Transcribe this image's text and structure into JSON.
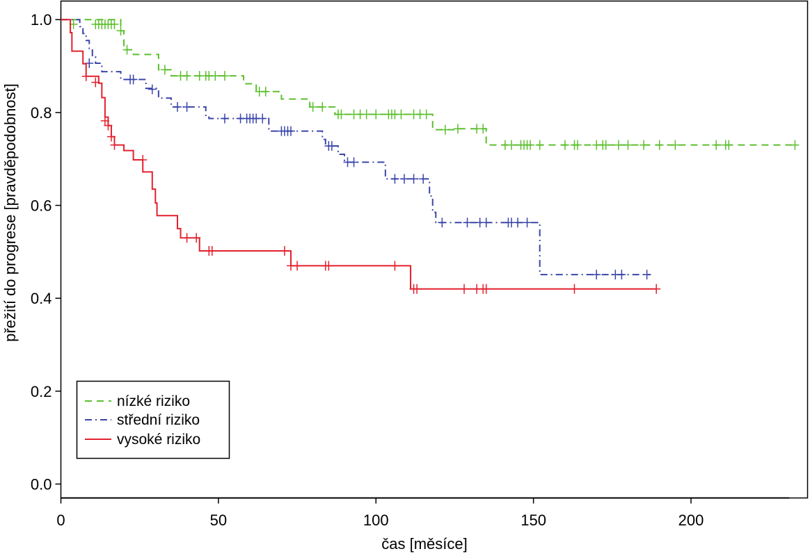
{
  "chart_data": {
    "type": "line",
    "subtype": "kaplan-meier step curves with censoring marks",
    "xlabel": "čas [měsíce]",
    "ylabel": "přežití do progrese [pravděpodobnost]",
    "xlim": [
      0,
      237
    ],
    "ylim": [
      -0.03,
      1.04
    ],
    "x_ticks": [
      0,
      50,
      100,
      150,
      200
    ],
    "x_tick_labels": [
      "0",
      "50",
      "100",
      "150",
      "200"
    ],
    "y_ticks": [
      0.0,
      0.2,
      0.4,
      0.6,
      0.8,
      1.0
    ],
    "y_tick_labels": [
      "0.0",
      "0.2",
      "0.4",
      "0.6",
      "0.8",
      "1.0"
    ],
    "grid": false,
    "legend_position": "bottom-left",
    "series": [
      {
        "name": "nízké riziko",
        "color": "#5bbf2c",
        "dash": "dashed",
        "steps": [
          [
            0,
            1.0
          ],
          [
            19,
            0.976
          ],
          [
            20,
            0.935
          ],
          [
            23,
            0.925
          ],
          [
            31,
            0.892
          ],
          [
            35,
            0.879
          ],
          [
            58,
            0.862
          ],
          [
            62,
            0.845
          ],
          [
            70,
            0.829
          ],
          [
            79,
            0.812
          ],
          [
            87,
            0.796
          ],
          [
            118,
            0.763
          ],
          [
            126,
            0.765
          ],
          [
            135,
            0.73
          ],
          [
            233,
            0.73
          ]
        ],
        "censors": [
          [
            4,
            0.99
          ],
          [
            11,
            0.99
          ],
          [
            12,
            0.99
          ],
          [
            13,
            0.99
          ],
          [
            14,
            0.99
          ],
          [
            15,
            0.99
          ],
          [
            16,
            0.99
          ],
          [
            17,
            0.99
          ],
          [
            19,
            0.976
          ],
          [
            21,
            0.935
          ],
          [
            33,
            0.892
          ],
          [
            38,
            0.879
          ],
          [
            40,
            0.879
          ],
          [
            44,
            0.879
          ],
          [
            46,
            0.879
          ],
          [
            47,
            0.879
          ],
          [
            49,
            0.879
          ],
          [
            52,
            0.879
          ],
          [
            63,
            0.845
          ],
          [
            65,
            0.845
          ],
          [
            80,
            0.812
          ],
          [
            83,
            0.812
          ],
          [
            88,
            0.796
          ],
          [
            89,
            0.796
          ],
          [
            93,
            0.796
          ],
          [
            95,
            0.796
          ],
          [
            97,
            0.796
          ],
          [
            100,
            0.796
          ],
          [
            104,
            0.796
          ],
          [
            105,
            0.796
          ],
          [
            106,
            0.796
          ],
          [
            108,
            0.796
          ],
          [
            112,
            0.796
          ],
          [
            114,
            0.796
          ],
          [
            116,
            0.796
          ],
          [
            122,
            0.763
          ],
          [
            126,
            0.765
          ],
          [
            132,
            0.765
          ],
          [
            134,
            0.765
          ],
          [
            141,
            0.73
          ],
          [
            143,
            0.73
          ],
          [
            146,
            0.73
          ],
          [
            147,
            0.73
          ],
          [
            148,
            0.73
          ],
          [
            149,
            0.73
          ],
          [
            152,
            0.73
          ],
          [
            160,
            0.73
          ],
          [
            163,
            0.73
          ],
          [
            164,
            0.73
          ],
          [
            170,
            0.73
          ],
          [
            172,
            0.73
          ],
          [
            173,
            0.73
          ],
          [
            177,
            0.73
          ],
          [
            180,
            0.73
          ],
          [
            185,
            0.73
          ],
          [
            190,
            0.73
          ],
          [
            195,
            0.73
          ],
          [
            208,
            0.73
          ],
          [
            211,
            0.73
          ],
          [
            212,
            0.73
          ],
          [
            233,
            0.73
          ]
        ]
      },
      {
        "name": "střední riziko",
        "color": "#3b45a8",
        "dash": "dashdot",
        "steps": [
          [
            0,
            1.0
          ],
          [
            6,
            0.985
          ],
          [
            7,
            0.97
          ],
          [
            8,
            0.955
          ],
          [
            9,
            0.938
          ],
          [
            10,
            0.92
          ],
          [
            11,
            0.906
          ],
          [
            13,
            0.888
          ],
          [
            19,
            0.871
          ],
          [
            27,
            0.852
          ],
          [
            31,
            0.831
          ],
          [
            35,
            0.812
          ],
          [
            46,
            0.79
          ],
          [
            47,
            0.787
          ],
          [
            66,
            0.76
          ],
          [
            83,
            0.742
          ],
          [
            84,
            0.728
          ],
          [
            88,
            0.71
          ],
          [
            90,
            0.693
          ],
          [
            103,
            0.657
          ],
          [
            116,
            0.657
          ],
          [
            117,
            0.62
          ],
          [
            118,
            0.585
          ],
          [
            119,
            0.563
          ],
          [
            152,
            0.451
          ],
          [
            187,
            0.451
          ]
        ],
        "censors": [
          [
            9,
            0.906
          ],
          [
            22,
            0.871
          ],
          [
            23,
            0.871
          ],
          [
            29,
            0.85
          ],
          [
            37,
            0.812
          ],
          [
            40,
            0.812
          ],
          [
            52,
            0.787
          ],
          [
            57,
            0.787
          ],
          [
            59,
            0.787
          ],
          [
            60,
            0.787
          ],
          [
            61,
            0.787
          ],
          [
            62,
            0.787
          ],
          [
            64,
            0.787
          ],
          [
            70,
            0.76
          ],
          [
            71,
            0.76
          ],
          [
            72,
            0.76
          ],
          [
            73,
            0.76
          ],
          [
            85,
            0.728
          ],
          [
            86,
            0.728
          ],
          [
            91,
            0.693
          ],
          [
            93,
            0.693
          ],
          [
            106,
            0.657
          ],
          [
            109,
            0.657
          ],
          [
            112,
            0.657
          ],
          [
            115,
            0.657
          ],
          [
            121,
            0.563
          ],
          [
            129,
            0.563
          ],
          [
            133,
            0.563
          ],
          [
            135,
            0.563
          ],
          [
            142,
            0.563
          ],
          [
            143,
            0.563
          ],
          [
            145,
            0.563
          ],
          [
            148,
            0.563
          ],
          [
            170,
            0.451
          ],
          [
            176,
            0.451
          ],
          [
            178,
            0.451
          ],
          [
            186,
            0.451
          ]
        ]
      },
      {
        "name": "vysoké riziko",
        "color": "#e3202d",
        "dash": "solid",
        "steps": [
          [
            0,
            1.0
          ],
          [
            3,
            0.972
          ],
          [
            3.5,
            0.932
          ],
          [
            7,
            0.905
          ],
          [
            8,
            0.878
          ],
          [
            12,
            0.863
          ],
          [
            13,
            0.832
          ],
          [
            14,
            0.79
          ],
          [
            15,
            0.772
          ],
          [
            16,
            0.748
          ],
          [
            17,
            0.73
          ],
          [
            20,
            0.718
          ],
          [
            23,
            0.698
          ],
          [
            26,
            0.672
          ],
          [
            29,
            0.635
          ],
          [
            30,
            0.605
          ],
          [
            30.5,
            0.578
          ],
          [
            37,
            0.55
          ],
          [
            38,
            0.53
          ],
          [
            44,
            0.502
          ],
          [
            73,
            0.47
          ],
          [
            111,
            0.42
          ],
          [
            189,
            0.42
          ]
        ],
        "censors": [
          [
            8,
            0.878
          ],
          [
            11,
            0.865
          ],
          [
            14,
            0.782
          ],
          [
            15,
            0.772
          ],
          [
            16,
            0.748
          ],
          [
            17,
            0.73
          ],
          [
            26,
            0.698
          ],
          [
            40,
            0.53
          ],
          [
            43,
            0.53
          ],
          [
            47,
            0.502
          ],
          [
            48,
            0.502
          ],
          [
            71,
            0.502
          ],
          [
            73,
            0.47
          ],
          [
            75,
            0.47
          ],
          [
            84,
            0.47
          ],
          [
            85,
            0.47
          ],
          [
            106,
            0.47
          ],
          [
            112,
            0.42
          ],
          [
            113,
            0.42
          ],
          [
            128,
            0.42
          ],
          [
            132,
            0.42
          ],
          [
            134,
            0.42
          ],
          [
            135,
            0.42
          ],
          [
            163,
            0.42
          ],
          [
            189,
            0.42
          ]
        ]
      }
    ]
  }
}
